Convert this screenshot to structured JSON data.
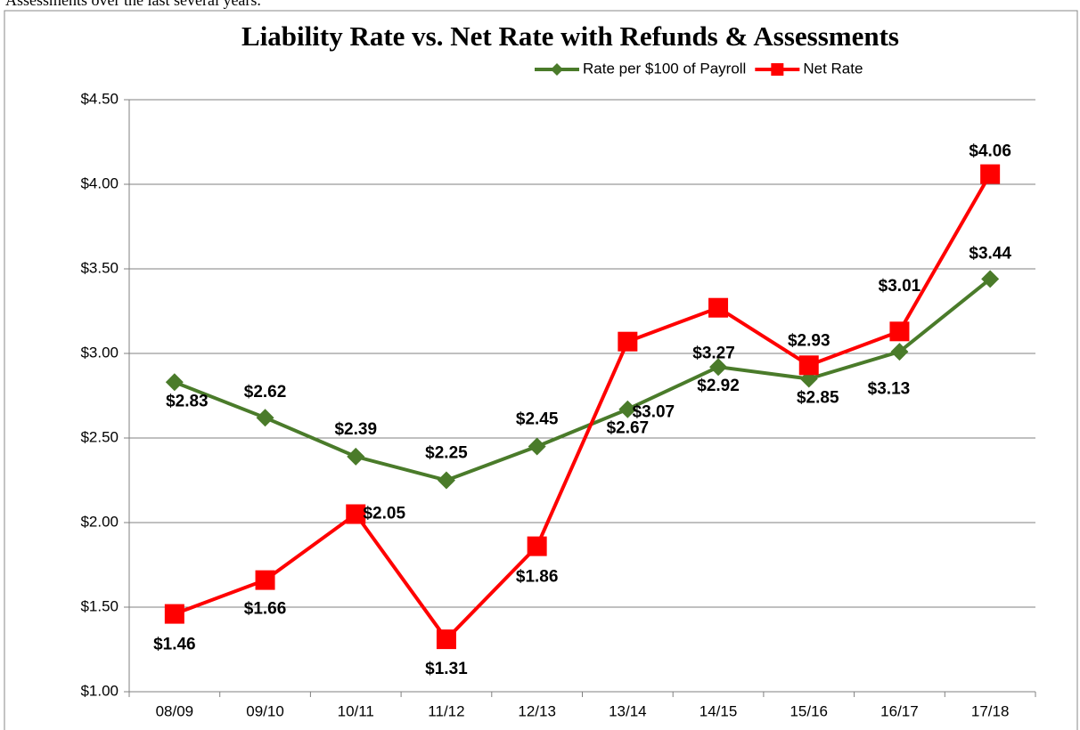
{
  "chart_data": {
    "type": "line",
    "caption": "Assessments over the last several years.",
    "title": "Liability Rate vs. Net Rate with Refunds & Assessments",
    "categories": [
      "08/09",
      "09/10",
      "10/11",
      "11/12",
      "12/13",
      "13/14",
      "14/15",
      "15/16",
      "16/17",
      "17/18"
    ],
    "series": [
      {
        "name": "Rate per $100 of Payroll",
        "color": "#4a7b2a",
        "marker": "diamond",
        "values": [
          2.83,
          2.62,
          2.39,
          2.25,
          2.45,
          2.67,
          2.92,
          2.85,
          3.01,
          3.44
        ],
        "value_labels": [
          "$2.83",
          "$2.62",
          "$2.39",
          "$2.25",
          "$2.45",
          "$2.67",
          "$2.92",
          "$2.85",
          "$3.01",
          "$3.44"
        ]
      },
      {
        "name": "Net Rate",
        "color": "#ff0000",
        "marker": "square",
        "values": [
          1.46,
          1.66,
          2.05,
          1.31,
          1.86,
          3.07,
          3.27,
          2.93,
          3.13,
          4.06
        ],
        "value_labels": [
          "$1.46",
          "$1.66",
          "$2.05",
          "$1.31",
          "$1.86",
          "$3.07",
          "$3.27",
          "$2.93",
          "$3.13",
          "$4.06"
        ]
      }
    ],
    "ylim": [
      1.0,
      4.5
    ],
    "yticks": [
      {
        "value": 1.0,
        "label": "$1.00"
      },
      {
        "value": 1.5,
        "label": "$1.50"
      },
      {
        "value": 2.0,
        "label": "$2.00"
      },
      {
        "value": 2.5,
        "label": "$2.50"
      },
      {
        "value": 3.0,
        "label": "$3.00"
      },
      {
        "value": 3.5,
        "label": "$3.50"
      },
      {
        "value": 4.0,
        "label": "$4.00"
      },
      {
        "value": 4.5,
        "label": "$4.50"
      }
    ],
    "grid": true,
    "legend": "top"
  }
}
